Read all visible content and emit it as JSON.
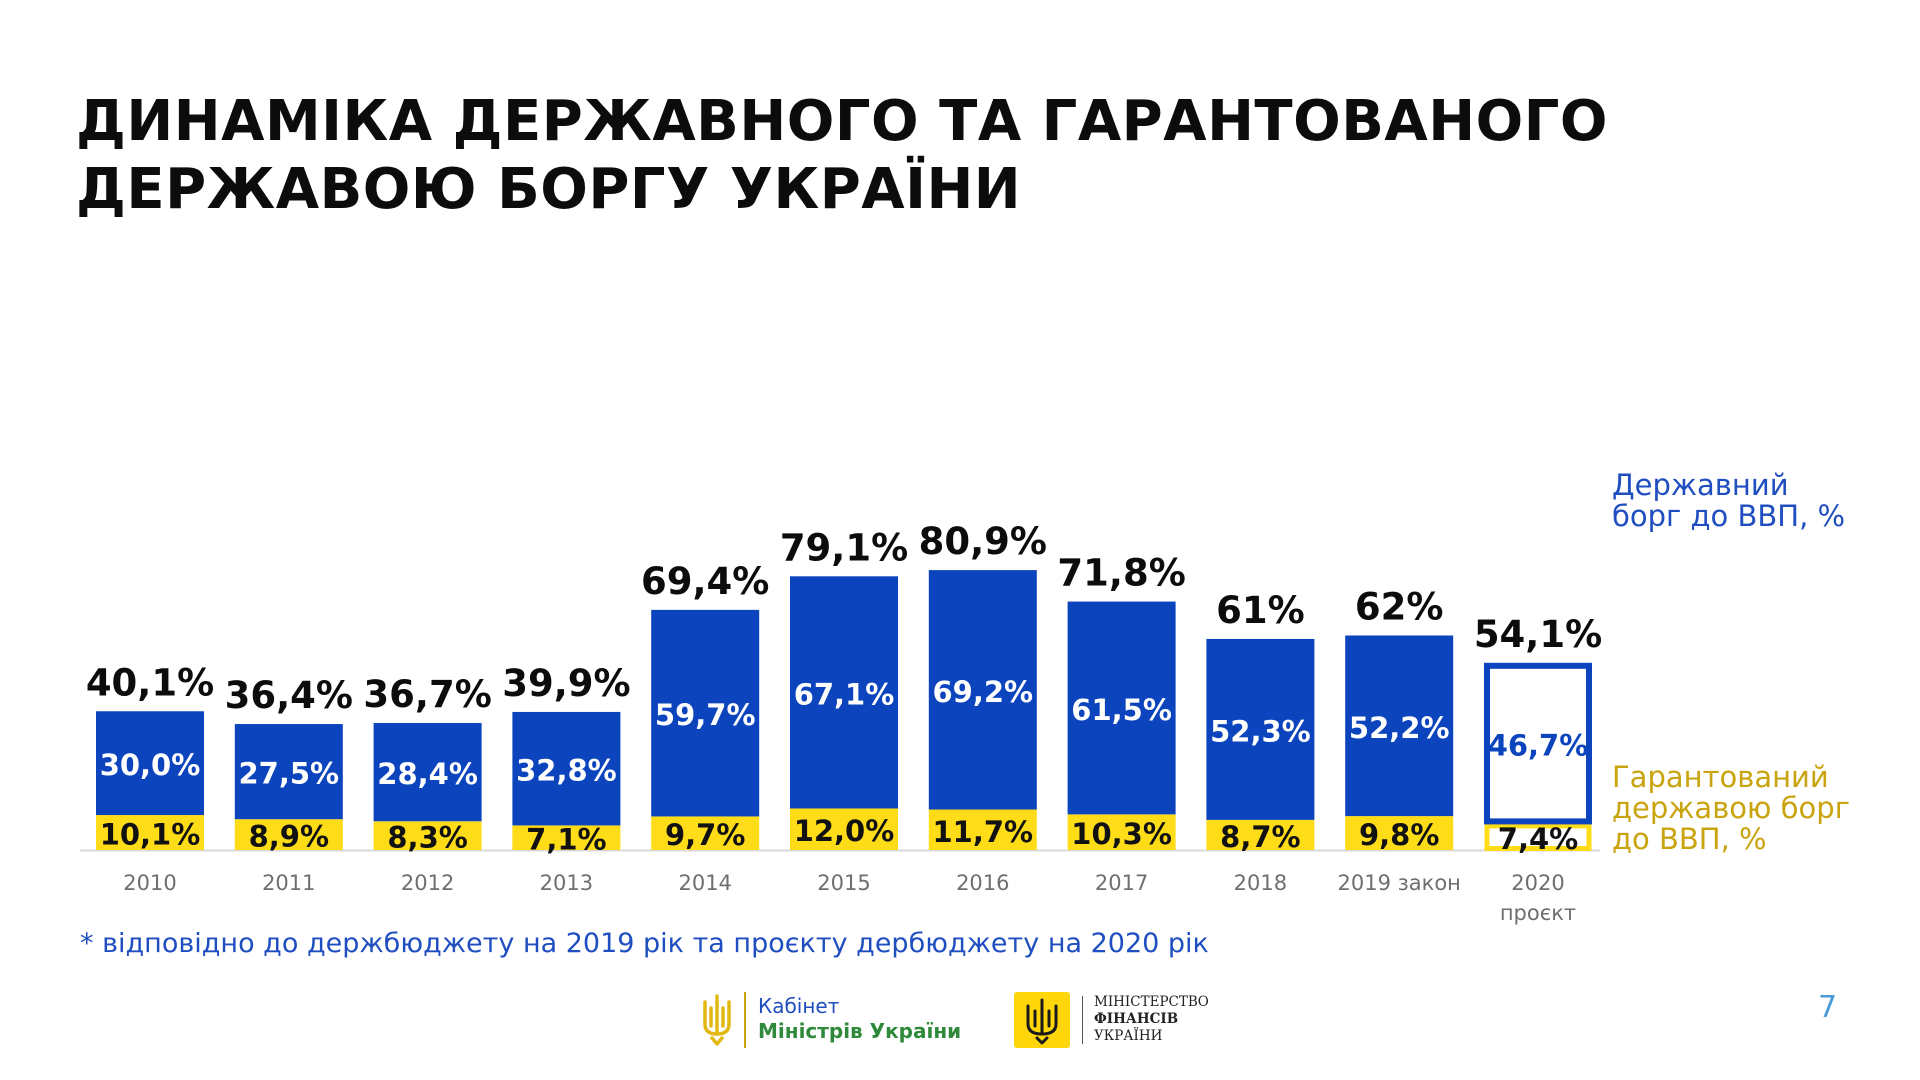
{
  "header": {
    "title_line1": "ДИНАМІКА ДЕРЖАВНОГО ТА ГАРАНТОВАНОГО",
    "title_line2": "ДЕРЖАВОЮ БОРГУ УКРАЇНИ"
  },
  "colors": {
    "state_debt": "#0b44bd",
    "guaranteed_debt": "#fedc18",
    "total_label": "#0c0c0c",
    "axis_label": "#6f6f6f",
    "legend_debt": "#1f4ec0",
    "legend_guaranteed": "#c9a40f"
  },
  "chart_data": {
    "type": "bar",
    "stacked": true,
    "categories": [
      "2010",
      "2011",
      "2012",
      "2013",
      "2014",
      "2015",
      "2016",
      "2017",
      "2018",
      "2019 закон",
      "2020 проєкт"
    ],
    "category_lines": [
      [
        "2010"
      ],
      [
        "2011"
      ],
      [
        "2012"
      ],
      [
        "2013"
      ],
      [
        "2014"
      ],
      [
        "2015"
      ],
      [
        "2016"
      ],
      [
        "2017"
      ],
      [
        "2018"
      ],
      [
        "2019 закон"
      ],
      [
        "2020",
        "проєкт"
      ]
    ],
    "series": [
      {
        "name": "Гарантований державою борг до ВВП, %",
        "values": [
          10.1,
          8.9,
          8.3,
          7.1,
          9.7,
          12.0,
          11.7,
          10.3,
          8.7,
          9.8,
          7.4
        ],
        "labels": [
          "10,1%",
          "8,9%",
          "8,3%",
          "7,1%",
          "9,7%",
          "12,0%",
          "11,7%",
          "10,3%",
          "8,7%",
          "9,8%",
          "7,4%"
        ]
      },
      {
        "name": "Державний борг до ВВП, %",
        "values": [
          30.0,
          27.5,
          28.4,
          32.8,
          59.7,
          67.1,
          69.2,
          61.5,
          52.3,
          52.2,
          46.7
        ],
        "labels": [
          "30,0%",
          "27,5%",
          "28,4%",
          "32,8%",
          "59,7%",
          "67,1%",
          "69,2%",
          "61,5%",
          "52,3%",
          "52,2%",
          "46,7%"
        ]
      }
    ],
    "totals": [
      40.1,
      36.4,
      36.7,
      39.9,
      69.4,
      79.1,
      80.9,
      71.8,
      61,
      62,
      54.1
    ],
    "total_labels": [
      "40,1%",
      "36,4%",
      "36,7%",
      "39,9%",
      "69,4%",
      "79,1%",
      "80,9%",
      "71,8%",
      "61%",
      "62%",
      "54,1%"
    ],
    "projected_index": 10,
    "ylim": [
      0,
      85
    ],
    "grid": false,
    "legend_position": "right"
  },
  "legend": {
    "state_debt_line1": "Державний",
    "state_debt_line2": "борг до ВВП, %",
    "guaranteed_line1": "Гарантований",
    "guaranteed_line2": "державою борг",
    "guaranteed_line3": "до ВВП, %"
  },
  "footnote": "* відповідно до держбюджету на 2019 рік та проєкту дербюджету на 2020 рік",
  "footer": {
    "kmu_line1": "Кабінет",
    "kmu_line2": "Міністрів України",
    "mof_line1": "МІНІСТЕРСТВО",
    "mof_line2": "ФІНАНСІВ",
    "mof_line3": "УКРАЇНИ",
    "page_number": "7"
  }
}
